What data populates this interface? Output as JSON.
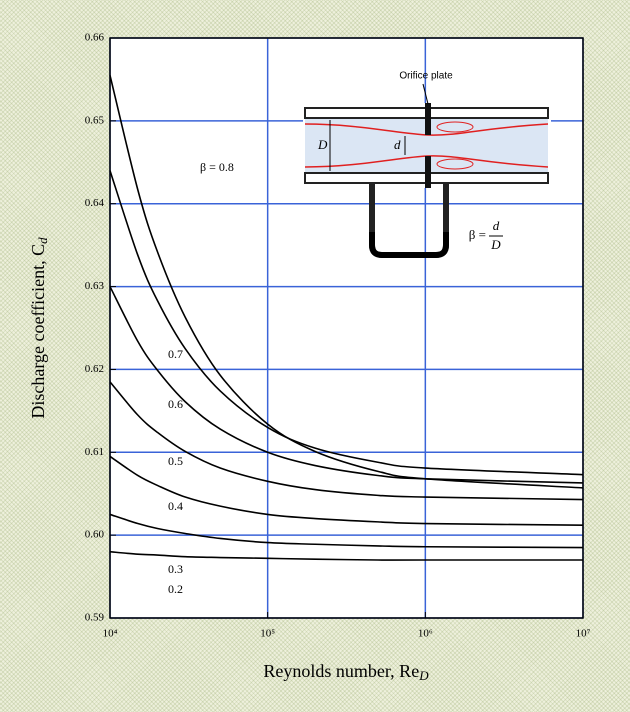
{
  "chart_data": {
    "type": "line",
    "x_label": "Reynolds number, Re",
    "x_label_sub": "D",
    "y_label": "Discharge coefficient, C",
    "y_label_sub": "d",
    "xscale": "log",
    "grid": true,
    "grid_color": "#3a63d8",
    "xlim": [
      10000,
      10000000
    ],
    "xticks": [
      {
        "value": 10000,
        "label": "10⁴"
      },
      {
        "value": 100000,
        "label": "10⁵"
      },
      {
        "value": 1000000,
        "label": "10⁶"
      },
      {
        "value": 10000000,
        "label": "10⁷"
      }
    ],
    "ylim": [
      0.59,
      0.66
    ],
    "yticks": [
      0.59,
      {
        "value": 0.6,
        "label": "0.60"
      },
      0.61,
      0.62,
      0.63,
      0.64,
      0.65,
      0.66
    ],
    "x": [
      10000,
      15000,
      20000,
      30000,
      50000,
      100000,
      200000,
      500000,
      1000000,
      10000000
    ],
    "series": [
      {
        "name": "β = 0.8",
        "color": "#000000",
        "values": [
          0.6555,
          0.6417,
          0.6342,
          0.6263,
          0.6193,
          0.6134,
          0.6101,
          0.6077,
          0.6068,
          0.6057
        ]
      },
      {
        "name": "0.7",
        "color": "#000000",
        "values": [
          0.644,
          0.6338,
          0.6283,
          0.6225,
          0.6174,
          0.613,
          0.6105,
          0.6088,
          0.6081,
          0.6073
        ]
      },
      {
        "name": "0.6",
        "color": "#000000",
        "values": [
          0.63,
          0.6234,
          0.6199,
          0.6161,
          0.6128,
          0.61,
          0.6084,
          0.6072,
          0.6068,
          0.6063
        ]
      },
      {
        "name": "0.5",
        "color": "#000000",
        "values": [
          0.6185,
          0.6145,
          0.6124,
          0.6101,
          0.6081,
          0.6065,
          0.6055,
          0.6048,
          0.6046,
          0.6043
        ]
      },
      {
        "name": "0.4",
        "color": "#000000",
        "values": [
          0.6095,
          0.6072,
          0.606,
          0.6046,
          0.6035,
          0.6025,
          0.602,
          0.6016,
          0.6014,
          0.6012
        ]
      },
      {
        "name": "0.3",
        "color": "#000000",
        "values": [
          0.6025,
          0.6014,
          0.6008,
          0.6002,
          0.5996,
          0.5991,
          0.5989,
          0.5987,
          0.5986,
          0.5985
        ]
      },
      {
        "name": "0.2",
        "color": "#000000",
        "values": [
          0.598,
          0.5977,
          0.5976,
          0.5974,
          0.5973,
          0.5972,
          0.5971,
          0.597,
          0.597,
          0.597
        ]
      }
    ],
    "annotations": {
      "orifice": "Orifice plate",
      "D": "D",
      "d": "d",
      "beta_eq": "β =",
      "beta_num": "d",
      "beta_den": "D"
    }
  }
}
